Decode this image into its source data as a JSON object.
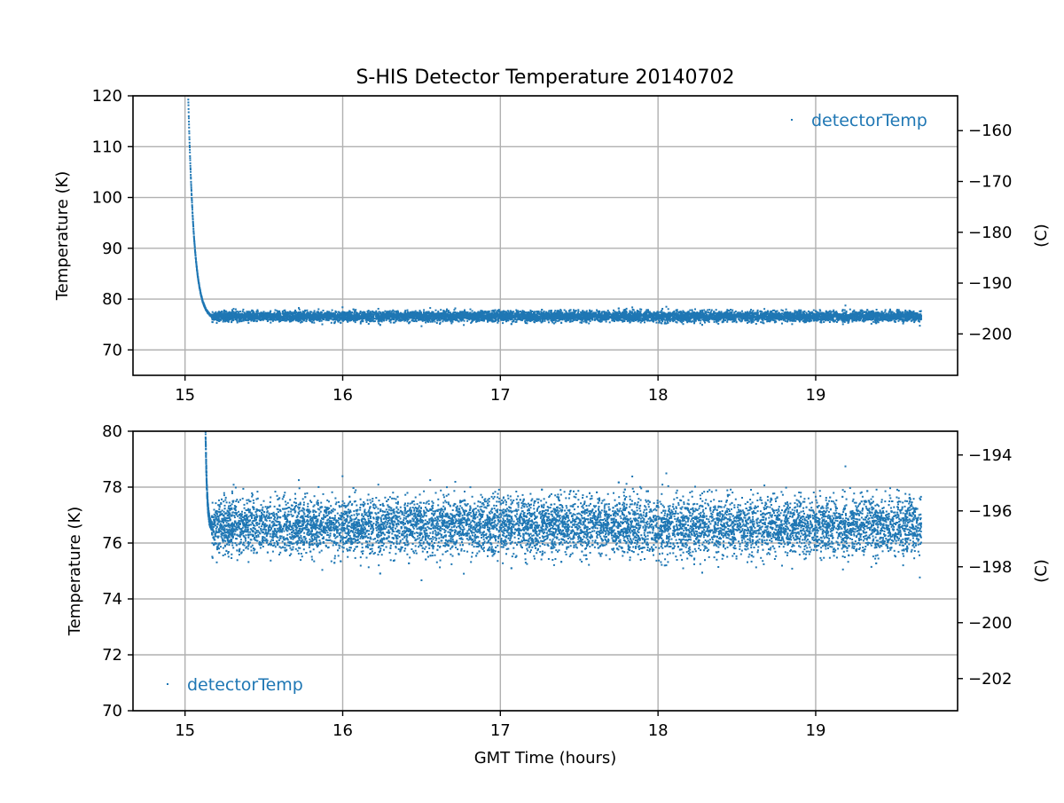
{
  "figure": {
    "title": "S-HIS Detector Temperature 20140702",
    "xlabel": "GMT Time (hours)"
  },
  "colors": {
    "series": "#1f77b4",
    "grid": "#b0b0b0",
    "axis": "#000000",
    "background": "#ffffff"
  },
  "chart_data": [
    {
      "type": "scatter",
      "name": "top-panel",
      "ylabel": "Temperature (K)",
      "ylabel_right": "(C)",
      "xlim": [
        14.67,
        19.9
      ],
      "ylim": [
        65,
        120
      ],
      "xticks": [
        15,
        16,
        17,
        18,
        19
      ],
      "yticks": [
        70,
        80,
        90,
        100,
        110,
        120
      ],
      "yticks_right": [
        -160,
        -170,
        -180,
        -190,
        -200
      ],
      "grid": true,
      "legend": {
        "label": "detectorTemp",
        "position": "top-right"
      },
      "series": [
        {
          "name": "detectorTemp",
          "decay": {
            "x_start": 15.02,
            "x_end": 15.17,
            "y_start": 120,
            "y_end": 76.6
          },
          "plateau": {
            "x_start": 15.17,
            "x_end": 19.67,
            "mean": 76.6,
            "sd": 0.5,
            "min": 74.5,
            "max": 79.3
          }
        }
      ]
    },
    {
      "type": "scatter",
      "name": "bottom-panel",
      "ylabel": "Temperature (K)",
      "ylabel_right": "(C)",
      "xlim": [
        14.67,
        19.9
      ],
      "ylim": [
        70,
        80
      ],
      "xticks": [
        15,
        16,
        17,
        18,
        19
      ],
      "yticks": [
        70,
        72,
        74,
        76,
        78,
        80
      ],
      "yticks_right": [
        -194,
        -196,
        -198,
        -200,
        -202
      ],
      "grid": true,
      "legend": {
        "label": "detectorTemp",
        "position": "bottom-left"
      },
      "series": [
        {
          "name": "detectorTemp",
          "decay": {
            "x_start": 15.13,
            "x_end": 15.17,
            "y_start": 80,
            "y_end": 76.6
          },
          "plateau": {
            "x_start": 15.17,
            "x_end": 19.67,
            "mean": 76.6,
            "sd": 0.5,
            "min": 74.5,
            "max": 79.3
          }
        }
      ]
    }
  ]
}
